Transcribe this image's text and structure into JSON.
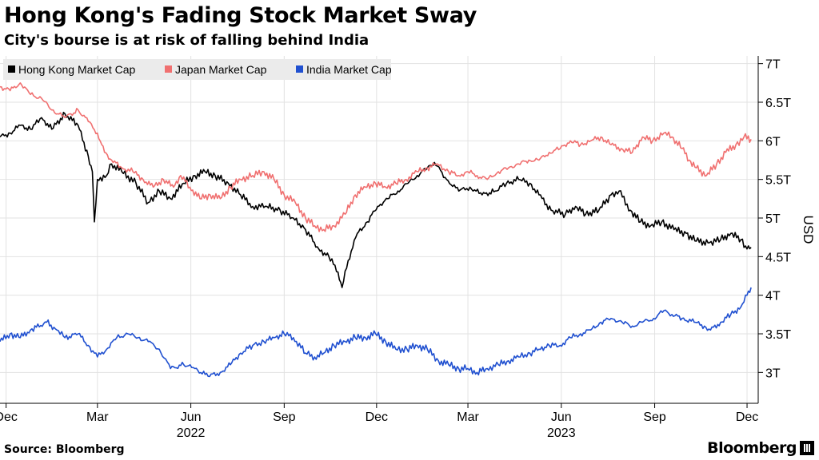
{
  "header": {
    "title": "Hong Kong's Fading Stock Market Sway",
    "subtitle": "City's bourse is at risk of falling behind India"
  },
  "footer": {
    "source": "Source: Bloomberg",
    "brand": "Bloomberg"
  },
  "chart_data": {
    "type": "line",
    "title": "Hong Kong's Fading Stock Market Sway",
    "subtitle": "City's bourse is at risk of falling behind India",
    "ylabel": "USD",
    "ylim": [
      2.6,
      7.1
    ],
    "yticks": [
      3,
      3.5,
      4,
      4.5,
      5,
      5.5,
      6,
      6.5,
      7
    ],
    "ytick_labels": [
      "3T",
      "3.5T",
      "4T",
      "4.5T",
      "5T",
      "5.5T",
      "6T",
      "6.5T",
      "7T"
    ],
    "xlim": [
      "2021-11-25",
      "2023-12-12"
    ],
    "xticks": [
      {
        "date": "2021-12-01",
        "label": "Dec"
      },
      {
        "date": "2022-03-01",
        "label": "Mar"
      },
      {
        "date": "2022-06-01",
        "label": "Jun"
      },
      {
        "date": "2022-09-01",
        "label": "Sep"
      },
      {
        "date": "2022-12-01",
        "label": "Dec"
      },
      {
        "date": "2023-03-01",
        "label": "Mar"
      },
      {
        "date": "2023-06-01",
        "label": "Jun"
      },
      {
        "date": "2023-09-01",
        "label": "Sep"
      },
      {
        "date": "2023-12-01",
        "label": "Dec"
      }
    ],
    "year_labels": [
      {
        "date": "2022-06-01",
        "label": "2022"
      },
      {
        "date": "2023-06-01",
        "label": "2023"
      }
    ],
    "grid": true,
    "legend": "top-left",
    "series": [
      {
        "name": "Hong Kong Market Cap",
        "color": "#000000",
        "points": [
          [
            "2021-11-25",
            6.05
          ],
          [
            "2021-12-05",
            6.1
          ],
          [
            "2021-12-15",
            6.2
          ],
          [
            "2021-12-25",
            6.15
          ],
          [
            "2022-01-05",
            6.3
          ],
          [
            "2022-01-15",
            6.15
          ],
          [
            "2022-01-28",
            6.35
          ],
          [
            "2022-02-10",
            6.2
          ],
          [
            "2022-02-20",
            5.8
          ],
          [
            "2022-02-24",
            5.6
          ],
          [
            "2022-02-26",
            4.95
          ],
          [
            "2022-03-01",
            5.5
          ],
          [
            "2022-03-10",
            5.55
          ],
          [
            "2022-03-15",
            5.7
          ],
          [
            "2022-03-25",
            5.6
          ],
          [
            "2022-04-08",
            5.45
          ],
          [
            "2022-04-20",
            5.2
          ],
          [
            "2022-05-01",
            5.35
          ],
          [
            "2022-05-12",
            5.25
          ],
          [
            "2022-05-25",
            5.45
          ],
          [
            "2022-06-05",
            5.55
          ],
          [
            "2022-06-15",
            5.6
          ],
          [
            "2022-06-25",
            5.55
          ],
          [
            "2022-07-08",
            5.45
          ],
          [
            "2022-07-20",
            5.3
          ],
          [
            "2022-08-01",
            5.15
          ],
          [
            "2022-08-15",
            5.15
          ],
          [
            "2022-08-28",
            5.1
          ],
          [
            "2022-09-10",
            5.0
          ],
          [
            "2022-09-22",
            4.85
          ],
          [
            "2022-10-05",
            4.6
          ],
          [
            "2022-10-15",
            4.5
          ],
          [
            "2022-10-24",
            4.3
          ],
          [
            "2022-10-28",
            4.1
          ],
          [
            "2022-11-03",
            4.45
          ],
          [
            "2022-11-12",
            4.8
          ],
          [
            "2022-11-22",
            4.95
          ],
          [
            "2022-12-02",
            5.15
          ],
          [
            "2022-12-12",
            5.25
          ],
          [
            "2022-12-22",
            5.35
          ],
          [
            "2023-01-01",
            5.45
          ],
          [
            "2023-01-10",
            5.55
          ],
          [
            "2023-01-20",
            5.65
          ],
          [
            "2023-01-27",
            5.72
          ],
          [
            "2023-02-08",
            5.5
          ],
          [
            "2023-02-20",
            5.35
          ],
          [
            "2023-03-03",
            5.4
          ],
          [
            "2023-03-15",
            5.3
          ],
          [
            "2023-03-28",
            5.35
          ],
          [
            "2023-04-08",
            5.45
          ],
          [
            "2023-04-20",
            5.5
          ],
          [
            "2023-05-01",
            5.45
          ],
          [
            "2023-05-10",
            5.3
          ],
          [
            "2023-05-22",
            5.1
          ],
          [
            "2023-06-05",
            5.05
          ],
          [
            "2023-06-15",
            5.15
          ],
          [
            "2023-06-25",
            5.05
          ],
          [
            "2023-07-08",
            5.1
          ],
          [
            "2023-07-20",
            5.3
          ],
          [
            "2023-07-28",
            5.35
          ],
          [
            "2023-08-08",
            5.1
          ],
          [
            "2023-08-18",
            4.95
          ],
          [
            "2023-08-28",
            4.9
          ],
          [
            "2023-09-08",
            4.95
          ],
          [
            "2023-09-20",
            4.85
          ],
          [
            "2023-10-02",
            4.8
          ],
          [
            "2023-10-12",
            4.7
          ],
          [
            "2023-10-25",
            4.68
          ],
          [
            "2023-11-05",
            4.72
          ],
          [
            "2023-11-15",
            4.8
          ],
          [
            "2023-11-25",
            4.72
          ],
          [
            "2023-12-01",
            4.6
          ],
          [
            "2023-12-05",
            4.62
          ]
        ]
      },
      {
        "name": "Japan Market Cap",
        "color": "#f07070",
        "points": [
          [
            "2021-11-25",
            6.7
          ],
          [
            "2021-12-05",
            6.65
          ],
          [
            "2021-12-15",
            6.75
          ],
          [
            "2021-12-25",
            6.6
          ],
          [
            "2022-01-05",
            6.55
          ],
          [
            "2022-01-15",
            6.4
          ],
          [
            "2022-01-28",
            6.3
          ],
          [
            "2022-02-10",
            6.4
          ],
          [
            "2022-02-20",
            6.25
          ],
          [
            "2022-03-01",
            6.1
          ],
          [
            "2022-03-08",
            5.85
          ],
          [
            "2022-03-15",
            5.75
          ],
          [
            "2022-03-25",
            5.65
          ],
          [
            "2022-04-05",
            5.6
          ],
          [
            "2022-04-15",
            5.5
          ],
          [
            "2022-04-25",
            5.4
          ],
          [
            "2022-05-05",
            5.5
          ],
          [
            "2022-05-15",
            5.4
          ],
          [
            "2022-05-22",
            5.55
          ],
          [
            "2022-05-31",
            5.4
          ],
          [
            "2022-06-10",
            5.25
          ],
          [
            "2022-06-20",
            5.3
          ],
          [
            "2022-06-30",
            5.25
          ],
          [
            "2022-07-10",
            5.4
          ],
          [
            "2022-07-20",
            5.5
          ],
          [
            "2022-08-01",
            5.55
          ],
          [
            "2022-08-12",
            5.6
          ],
          [
            "2022-08-22",
            5.5
          ],
          [
            "2022-09-01",
            5.3
          ],
          [
            "2022-09-12",
            5.2
          ],
          [
            "2022-09-22",
            5.0
          ],
          [
            "2022-10-01",
            4.9
          ],
          [
            "2022-10-10",
            4.85
          ],
          [
            "2022-10-20",
            4.9
          ],
          [
            "2022-10-31",
            5.05
          ],
          [
            "2022-11-10",
            5.3
          ],
          [
            "2022-11-20",
            5.4
          ],
          [
            "2022-11-30",
            5.45
          ],
          [
            "2022-12-10",
            5.4
          ],
          [
            "2022-12-20",
            5.45
          ],
          [
            "2022-12-30",
            5.5
          ],
          [
            "2023-01-10",
            5.6
          ],
          [
            "2023-01-20",
            5.65
          ],
          [
            "2023-01-30",
            5.7
          ],
          [
            "2023-02-10",
            5.6
          ],
          [
            "2023-02-20",
            5.55
          ],
          [
            "2023-03-01",
            5.6
          ],
          [
            "2023-03-10",
            5.55
          ],
          [
            "2023-03-20",
            5.5
          ],
          [
            "2023-03-31",
            5.6
          ],
          [
            "2023-04-10",
            5.65
          ],
          [
            "2023-04-20",
            5.7
          ],
          [
            "2023-04-30",
            5.75
          ],
          [
            "2023-05-10",
            5.75
          ],
          [
            "2023-05-20",
            5.85
          ],
          [
            "2023-05-31",
            5.9
          ],
          [
            "2023-06-10",
            6.0
          ],
          [
            "2023-06-20",
            5.95
          ],
          [
            "2023-06-30",
            6.0
          ],
          [
            "2023-07-10",
            6.05
          ],
          [
            "2023-07-20",
            5.95
          ],
          [
            "2023-07-30",
            5.9
          ],
          [
            "2023-08-10",
            5.85
          ],
          [
            "2023-08-20",
            6.05
          ],
          [
            "2023-08-30",
            6.0
          ],
          [
            "2023-09-10",
            6.1
          ],
          [
            "2023-09-18",
            6.05
          ],
          [
            "2023-09-28",
            5.9
          ],
          [
            "2023-10-05",
            5.75
          ],
          [
            "2023-10-12",
            5.65
          ],
          [
            "2023-10-22",
            5.55
          ],
          [
            "2023-11-01",
            5.7
          ],
          [
            "2023-11-10",
            5.85
          ],
          [
            "2023-11-20",
            5.95
          ],
          [
            "2023-11-28",
            6.05
          ],
          [
            "2023-12-05",
            6.02
          ]
        ]
      },
      {
        "name": "India Market Cap",
        "color": "#2050d0",
        "points": [
          [
            "2021-11-25",
            3.4
          ],
          [
            "2021-12-05",
            3.5
          ],
          [
            "2021-12-15",
            3.45
          ],
          [
            "2021-12-25",
            3.55
          ],
          [
            "2022-01-10",
            3.65
          ],
          [
            "2022-01-20",
            3.55
          ],
          [
            "2022-01-28",
            3.45
          ],
          [
            "2022-02-10",
            3.5
          ],
          [
            "2022-02-20",
            3.35
          ],
          [
            "2022-03-01",
            3.2
          ],
          [
            "2022-03-10",
            3.3
          ],
          [
            "2022-03-20",
            3.45
          ],
          [
            "2022-03-31",
            3.5
          ],
          [
            "2022-04-10",
            3.45
          ],
          [
            "2022-04-20",
            3.4
          ],
          [
            "2022-05-01",
            3.3
          ],
          [
            "2022-05-12",
            3.05
          ],
          [
            "2022-05-25",
            3.1
          ],
          [
            "2022-06-05",
            3.05
          ],
          [
            "2022-06-18",
            2.95
          ],
          [
            "2022-06-30",
            3.0
          ],
          [
            "2022-07-10",
            3.1
          ],
          [
            "2022-07-20",
            3.25
          ],
          [
            "2022-08-01",
            3.35
          ],
          [
            "2022-08-12",
            3.4
          ],
          [
            "2022-08-22",
            3.45
          ],
          [
            "2022-09-01",
            3.5
          ],
          [
            "2022-09-10",
            3.45
          ],
          [
            "2022-09-22",
            3.25
          ],
          [
            "2022-10-01",
            3.2
          ],
          [
            "2022-10-10",
            3.25
          ],
          [
            "2022-10-20",
            3.35
          ],
          [
            "2022-10-31",
            3.4
          ],
          [
            "2022-11-10",
            3.45
          ],
          [
            "2022-11-20",
            3.45
          ],
          [
            "2022-11-30",
            3.5
          ],
          [
            "2022-12-10",
            3.4
          ],
          [
            "2022-12-20",
            3.3
          ],
          [
            "2022-12-31",
            3.3
          ],
          [
            "2023-01-10",
            3.35
          ],
          [
            "2023-01-20",
            3.3
          ],
          [
            "2023-01-31",
            3.15
          ],
          [
            "2023-02-10",
            3.1
          ],
          [
            "2023-02-20",
            3.05
          ],
          [
            "2023-03-01",
            3.05
          ],
          [
            "2023-03-10",
            3.0
          ],
          [
            "2023-03-20",
            3.05
          ],
          [
            "2023-03-31",
            3.1
          ],
          [
            "2023-04-10",
            3.15
          ],
          [
            "2023-04-20",
            3.2
          ],
          [
            "2023-05-01",
            3.25
          ],
          [
            "2023-05-10",
            3.3
          ],
          [
            "2023-05-20",
            3.35
          ],
          [
            "2023-05-31",
            3.35
          ],
          [
            "2023-06-10",
            3.45
          ],
          [
            "2023-06-20",
            3.5
          ],
          [
            "2023-06-30",
            3.55
          ],
          [
            "2023-07-10",
            3.65
          ],
          [
            "2023-07-20",
            3.7
          ],
          [
            "2023-07-31",
            3.65
          ],
          [
            "2023-08-10",
            3.6
          ],
          [
            "2023-08-20",
            3.65
          ],
          [
            "2023-08-31",
            3.7
          ],
          [
            "2023-09-10",
            3.8
          ],
          [
            "2023-09-18",
            3.75
          ],
          [
            "2023-09-28",
            3.7
          ],
          [
            "2023-10-10",
            3.65
          ],
          [
            "2023-10-20",
            3.6
          ],
          [
            "2023-10-26",
            3.55
          ],
          [
            "2023-11-05",
            3.65
          ],
          [
            "2023-11-15",
            3.75
          ],
          [
            "2023-11-25",
            3.85
          ],
          [
            "2023-12-01",
            4.0
          ],
          [
            "2023-12-05",
            4.1
          ]
        ]
      }
    ]
  }
}
